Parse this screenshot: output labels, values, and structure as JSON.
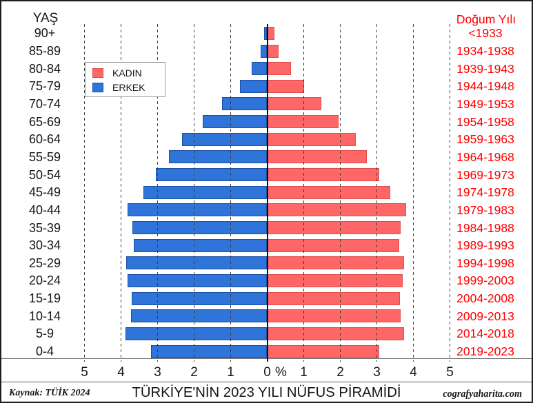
{
  "header": {
    "left_axis_title": "YAŞ",
    "right_axis_title": "Doğum Yılı"
  },
  "legend": {
    "female_label": "KADIN",
    "male_label": "ERKEK"
  },
  "x_axis": {
    "left_ticks": [
      "5",
      "4",
      "3",
      "2",
      "1"
    ],
    "zero_label": "0",
    "percent_symbol": "%",
    "right_ticks": [
      "1",
      "2",
      "3",
      "4",
      "5"
    ]
  },
  "footer": {
    "source_note": "Kaynak: TÜİK 2024",
    "title": "TÜRKİYE'NİN 2023 YILI NÜFUS PİRAMİDİ",
    "watermark": "cografyaharita.com"
  },
  "colors": {
    "male_fill": "#2F74D8",
    "male_border": "#1C4FA4",
    "female_fill": "#FF6666",
    "female_border": "#E04D4D",
    "birth_year_text": "#FE0000",
    "grid": "#3c3c3c"
  },
  "chart_data": {
    "type": "bar",
    "variant": "population-pyramid",
    "title": "TÜRKİYE'NİN 2023 YILI NÜFUS PİRAMİDİ",
    "unit": "percent of total population",
    "x_max_percent": 5,
    "x_tick_interval_percent": 1,
    "grid": "vertical dashed lines every 1%",
    "legend_position": "upper-left",
    "categories_age": [
      "90+",
      "85-89",
      "80-84",
      "75-79",
      "70-74",
      "65-69",
      "60-64",
      "55-59",
      "50-54",
      "45-49",
      "40-44",
      "35-39",
      "30-34",
      "25-29",
      "20-24",
      "15-19",
      "10-14",
      "5-9",
      "0-4"
    ],
    "categories_birth_year": [
      "<1933",
      "1934-1938",
      "1939-1943",
      "1944-1948",
      "1949-1953",
      "1954-1958",
      "1959-1963",
      "1964-1968",
      "1969-1973",
      "1974-1978",
      "1979-1983",
      "1984-1988",
      "1989-1993",
      "1994-1998",
      "1999-2003",
      "2004-2008",
      "2009-2013",
      "2014-2018",
      "2019-2023"
    ],
    "series": [
      {
        "name": "ERKEK",
        "side": "left",
        "color": "#2F74D8",
        "values_percent": [
          0.09,
          0.18,
          0.42,
          0.74,
          1.24,
          1.77,
          2.33,
          2.69,
          3.05,
          3.39,
          3.82,
          3.69,
          3.66,
          3.85,
          3.83,
          3.71,
          3.73,
          3.88,
          3.18
        ]
      },
      {
        "name": "KADIN",
        "side": "right",
        "color": "#FF6666",
        "values_percent": [
          0.19,
          0.32,
          0.65,
          1.0,
          1.48,
          1.96,
          2.42,
          2.72,
          3.07,
          3.36,
          3.8,
          3.66,
          3.62,
          3.74,
          3.7,
          3.63,
          3.66,
          3.74,
          3.06
        ]
      }
    ]
  }
}
